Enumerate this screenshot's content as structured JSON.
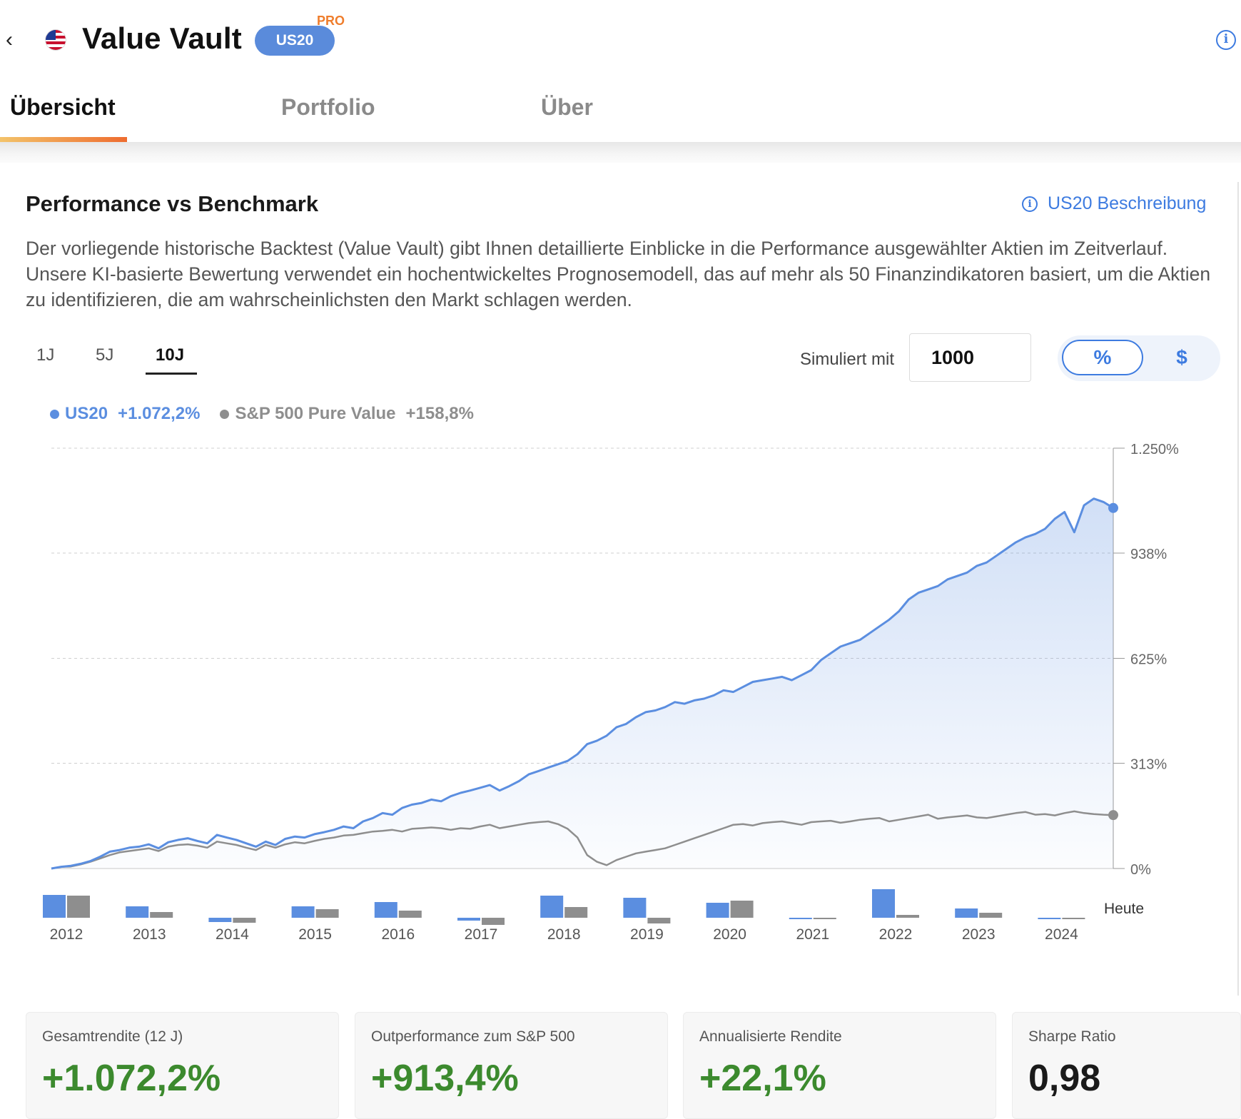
{
  "header": {
    "title": "Value Vault",
    "badge": "US20",
    "pro_label": "PRO"
  },
  "tabs": [
    {
      "label": "Übersicht",
      "active": true
    },
    {
      "label": "Portfolio",
      "active": false
    },
    {
      "label": "Über",
      "active": false
    }
  ],
  "section": {
    "title": "Performance vs Benchmark",
    "description_link": "US20 Beschreibung",
    "description": "Der vorliegende historische Backtest (Value Vault) gibt Ihnen detaillierte Einblicke in die Performance ausgewählter Aktien im Zeitverlauf. Unsere KI-basierte Bewertung verwendet ein hochentwickeltes Prognosemodell, das auf mehr als 50 Finanzindikatoren basiert, um die Aktien zu identifizieren, die am wahrscheinlichsten den Markt schlagen werden."
  },
  "range_tabs": [
    {
      "label": "1J",
      "active": false
    },
    {
      "label": "5J",
      "active": false
    },
    {
      "label": "10J",
      "active": true
    }
  ],
  "simulation": {
    "label": "Simuliert mit",
    "value": "1000",
    "toggle_percent": "%",
    "toggle_dollar": "$",
    "selected": "%"
  },
  "colors": {
    "us20": "#5b8ee0",
    "benchmark": "#8e8e8e",
    "positive": "#3c8a2e",
    "accent": "#3d7be0"
  },
  "chart_data": {
    "type": "line",
    "y_tick_labels": [
      "1.250%",
      "938%",
      "625%",
      "313%",
      "0%"
    ],
    "y_ticks": [
      1250,
      938,
      625,
      313,
      0
    ],
    "ylim": [
      0,
      1250
    ],
    "grid": true,
    "legend_placement": "top-left",
    "series": [
      {
        "name": "US20",
        "total_label": "+1.072,2%",
        "values": [
          0,
          5,
          8,
          14,
          22,
          35,
          50,
          55,
          62,
          65,
          72,
          60,
          78,
          85,
          90,
          82,
          75,
          100,
          92,
          85,
          75,
          65,
          80,
          70,
          88,
          95,
          92,
          102,
          108,
          115,
          125,
          120,
          140,
          150,
          165,
          160,
          180,
          190,
          195,
          205,
          200,
          215,
          225,
          232,
          240,
          248,
          232,
          245,
          260,
          280,
          290,
          300,
          310,
          320,
          340,
          370,
          380,
          395,
          420,
          430,
          450,
          465,
          470,
          480,
          495,
          490,
          500,
          505,
          515,
          530,
          525,
          540,
          555,
          560,
          565,
          570,
          560,
          575,
          590,
          620,
          640,
          660,
          670,
          680,
          700,
          720,
          740,
          765,
          800,
          820,
          830,
          840,
          860,
          870,
          880,
          900,
          910,
          930,
          950,
          970,
          985,
          995,
          1010,
          1040,
          1060,
          1000,
          1080,
          1100,
          1090,
          1072.2
        ]
      },
      {
        "name": "S&P 500 Pure Value",
        "total_label": "+158,8%",
        "values": [
          0,
          5,
          6,
          12,
          20,
          30,
          40,
          48,
          52,
          56,
          60,
          52,
          65,
          70,
          72,
          68,
          62,
          80,
          75,
          70,
          62,
          55,
          70,
          62,
          72,
          78,
          75,
          82,
          88,
          92,
          98,
          100,
          105,
          110,
          112,
          115,
          110,
          118,
          120,
          122,
          120,
          115,
          120,
          118,
          125,
          130,
          120,
          125,
          130,
          135,
          138,
          140,
          132,
          118,
          92,
          40,
          20,
          10,
          25,
          35,
          45,
          50,
          55,
          60,
          70,
          80,
          90,
          100,
          110,
          120,
          130,
          132,
          128,
          135,
          138,
          140,
          135,
          130,
          138,
          140,
          142,
          136,
          140,
          145,
          148,
          150,
          140,
          145,
          150,
          155,
          160,
          148,
          152,
          155,
          158,
          152,
          150,
          155,
          160,
          165,
          168,
          160,
          162,
          158,
          165,
          170,
          165,
          162,
          160,
          158.8
        ]
      }
    ],
    "bar_years": [
      "2012",
      "2013",
      "2014",
      "2015",
      "2016",
      "2017",
      "2018",
      "2019",
      "2020",
      "2021",
      "2022",
      "2023",
      "2024"
    ],
    "bar_values_us20": [
      32,
      16,
      -6,
      16,
      22,
      -4,
      31,
      28,
      21,
      -1,
      40,
      13,
      -1
    ],
    "bar_values_benchmark": [
      31,
      8,
      -7,
      12,
      10,
      -10,
      15,
      -8,
      24,
      -2,
      4,
      7,
      -1
    ],
    "today_label": "Heute"
  },
  "stats": [
    {
      "label": "Gesamtrendite (12 J)",
      "value": "+1.072,2%",
      "positive": true
    },
    {
      "label": "Outperformance zum S&P 500",
      "value": "+913,4%",
      "positive": true
    },
    {
      "label": "Annualisierte Rendite",
      "value": "+22,1%",
      "positive": true
    },
    {
      "label": "Sharpe Ratio",
      "value": "0,98",
      "positive": false
    }
  ]
}
